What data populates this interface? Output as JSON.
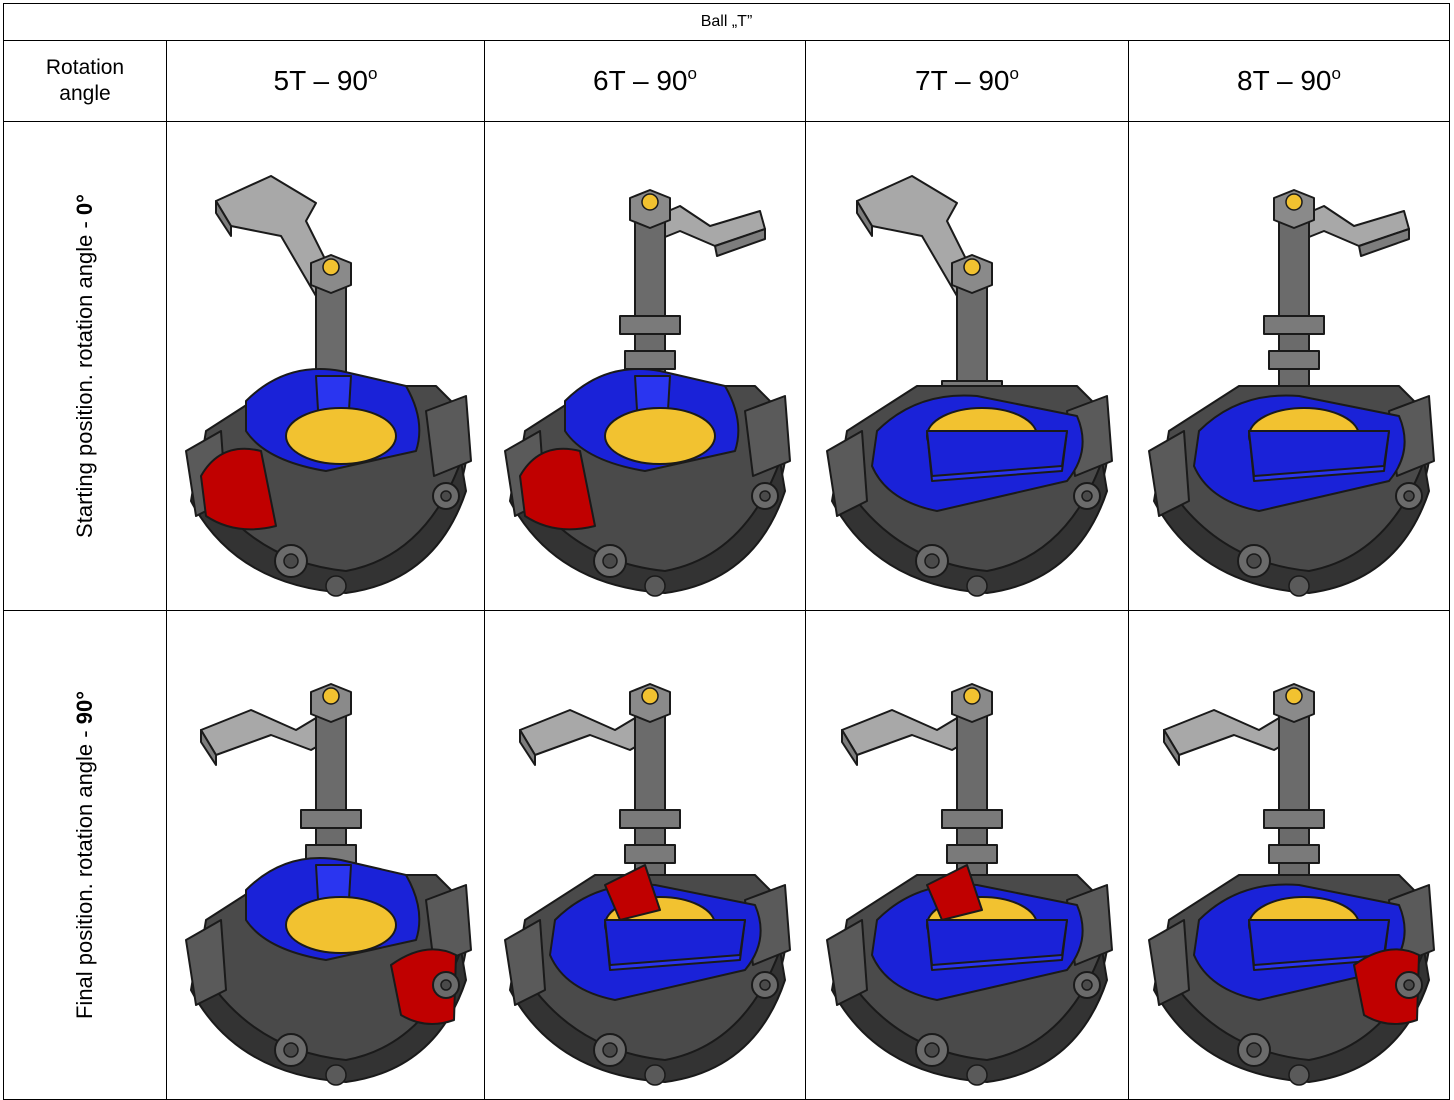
{
  "table": {
    "title": "Ball „T”",
    "header": {
      "rotation_label_line1": "Rotation",
      "rotation_label_line2": "angle",
      "columns": [
        {
          "name": "5T – 90",
          "sup": "o"
        },
        {
          "name": "6T – 90",
          "sup": "o"
        },
        {
          "name": "7T – 90",
          "sup": "o"
        },
        {
          "name": "8T – 90",
          "sup": "o"
        }
      ]
    },
    "rows": [
      {
        "label_prefix": "Starting position. rotation angle - ",
        "label_value": "0°",
        "cells": [
          "ball-valve-5t-start-image",
          "ball-valve-6t-start-image",
          "ball-valve-7t-start-image",
          "ball-valve-8t-start-image"
        ]
      },
      {
        "label_prefix": "Final position. rotation angle - ",
        "label_value": "90°",
        "cells": [
          "ball-valve-5t-final-image",
          "ball-valve-6t-final-image",
          "ball-valve-7t-final-image",
          "ball-valve-8t-final-image"
        ]
      }
    ]
  },
  "colors": {
    "body_dark": "#4a4a4a",
    "body_mid": "#6b6b6b",
    "handle": "#a8a8a8",
    "flow_blue": "#1a22d8",
    "flow_red": "#c00000",
    "ball_yellow": "#f2c230"
  }
}
